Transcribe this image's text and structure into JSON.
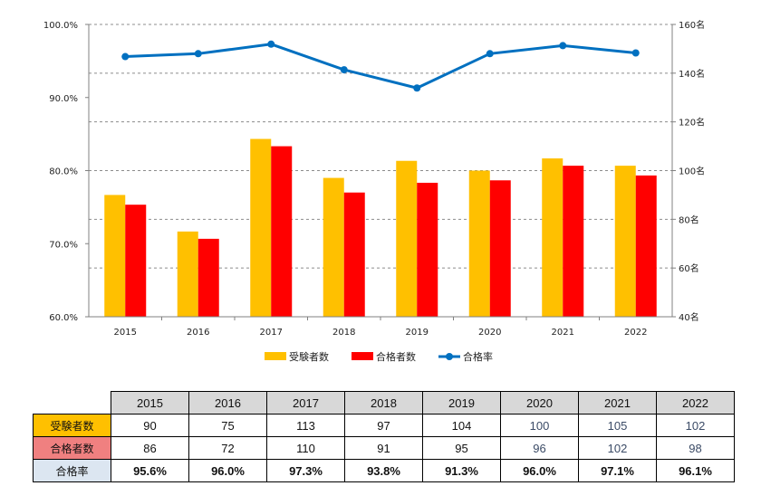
{
  "chart_data": {
    "type": "bar+line",
    "categories": [
      "2015",
      "2016",
      "2017",
      "2018",
      "2019",
      "2020",
      "2021",
      "2022"
    ],
    "series": [
      {
        "name": "受験者数",
        "kind": "bar",
        "axis": "right",
        "color": "#ffc000",
        "values": [
          90,
          75,
          113,
          97,
          104,
          100,
          105,
          102
        ]
      },
      {
        "name": "合格者数",
        "kind": "bar",
        "axis": "right",
        "color": "#ff0000",
        "values": [
          86,
          72,
          110,
          91,
          95,
          96,
          102,
          98
        ]
      },
      {
        "name": "合格率",
        "kind": "line",
        "axis": "left",
        "color": "#0070c0",
        "values": [
          95.6,
          96.0,
          97.3,
          93.8,
          91.3,
          96.0,
          97.1,
          96.1
        ]
      }
    ],
    "left_axis": {
      "range": [
        60,
        100
      ],
      "ticks": [
        "60.0%",
        "70.0%",
        "80.0%",
        "90.0%",
        "100.0%"
      ]
    },
    "right_axis": {
      "range": [
        40,
        160
      ],
      "ticks": [
        "40名",
        "60名",
        "80名",
        "100名",
        "120名",
        "140名",
        "160名"
      ]
    },
    "grid": "right-axis dashed",
    "legend": "bottom",
    "title": ""
  },
  "table": {
    "headers": [
      "2015",
      "2016",
      "2017",
      "2018",
      "2019",
      "2020",
      "2021",
      "2022"
    ],
    "rows": [
      {
        "label": "受験者数",
        "cells": [
          "90",
          "75",
          "113",
          "97",
          "104",
          "100",
          "105",
          "102"
        ]
      },
      {
        "label": "合格者数",
        "cells": [
          "86",
          "72",
          "110",
          "91",
          "95",
          "96",
          "102",
          "98"
        ]
      },
      {
        "label": "合格率",
        "cells": [
          "95.6%",
          "96.0%",
          "97.3%",
          "93.8%",
          "91.3%",
          "96.0%",
          "97.1%",
          "96.1%"
        ]
      }
    ]
  }
}
